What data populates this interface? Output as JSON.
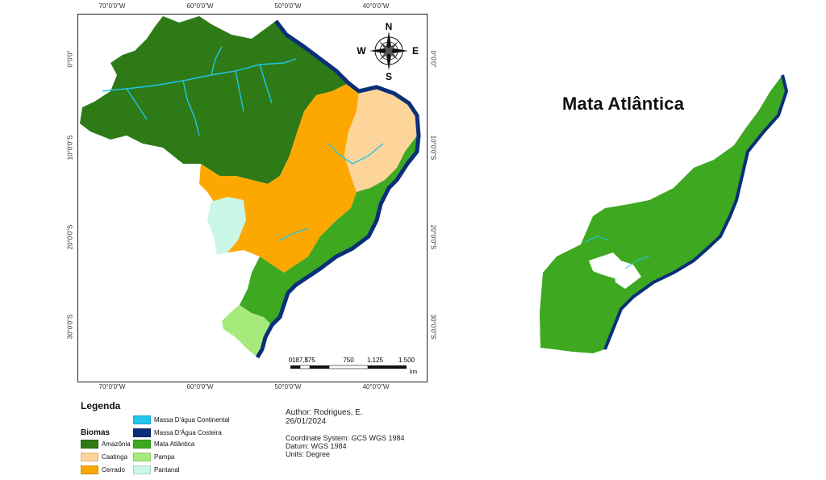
{
  "map": {
    "graticule": {
      "top": [
        "70°0'0\"W",
        "60°0'0\"W",
        "50°0'0\"W",
        "40°0'0\"W"
      ],
      "bottom": [
        "70°0'0\"W",
        "60°0'0\"W",
        "50°0'0\"W",
        "40°0'0\"W"
      ],
      "left": [
        "0°0'0\"",
        "10°0'0\"S",
        "20°0'0\"S",
        "30°0'0\"S"
      ],
      "right": [
        "0°0'0\"",
        "10°0'0\"S",
        "20°0'0\"S",
        "30°0'0\"S"
      ]
    },
    "compass": {
      "n": "N",
      "s": "S",
      "e": "E",
      "w": "W"
    },
    "scale_bar": {
      "labels": [
        "0",
        "187,5",
        "375",
        "750",
        "1.125",
        "1.500"
      ],
      "unit": "km"
    }
  },
  "legend": {
    "title": "Legenda",
    "group_title": "Biomas",
    "items": [
      {
        "label": "Amazônia",
        "color": "#2d7a17"
      },
      {
        "label": "Caatinga",
        "color": "#fdd49a"
      },
      {
        "label": "Cerrado",
        "color": "#fca800"
      },
      {
        "label": "Massa D'água Continental",
        "color": "#20c6ec"
      },
      {
        "label": "Massa D'Água Costeira",
        "color": "#0a2f78"
      },
      {
        "label": "Mata Atlântica",
        "color": "#3ea821"
      },
      {
        "label": "Pampa",
        "color": "#a6ea7c"
      },
      {
        "label": "Pantanal",
        "color": "#c9f6e6"
      }
    ]
  },
  "credits": {
    "author": "Author: Rodrigues, E.",
    "date": "26/01/2024",
    "coord_system": "Coordinate System: GCS WGS 1984",
    "datum": "Datum: WGS 1984",
    "units": "Units: Degree"
  },
  "inset": {
    "title": "Mata Atlântica"
  }
}
